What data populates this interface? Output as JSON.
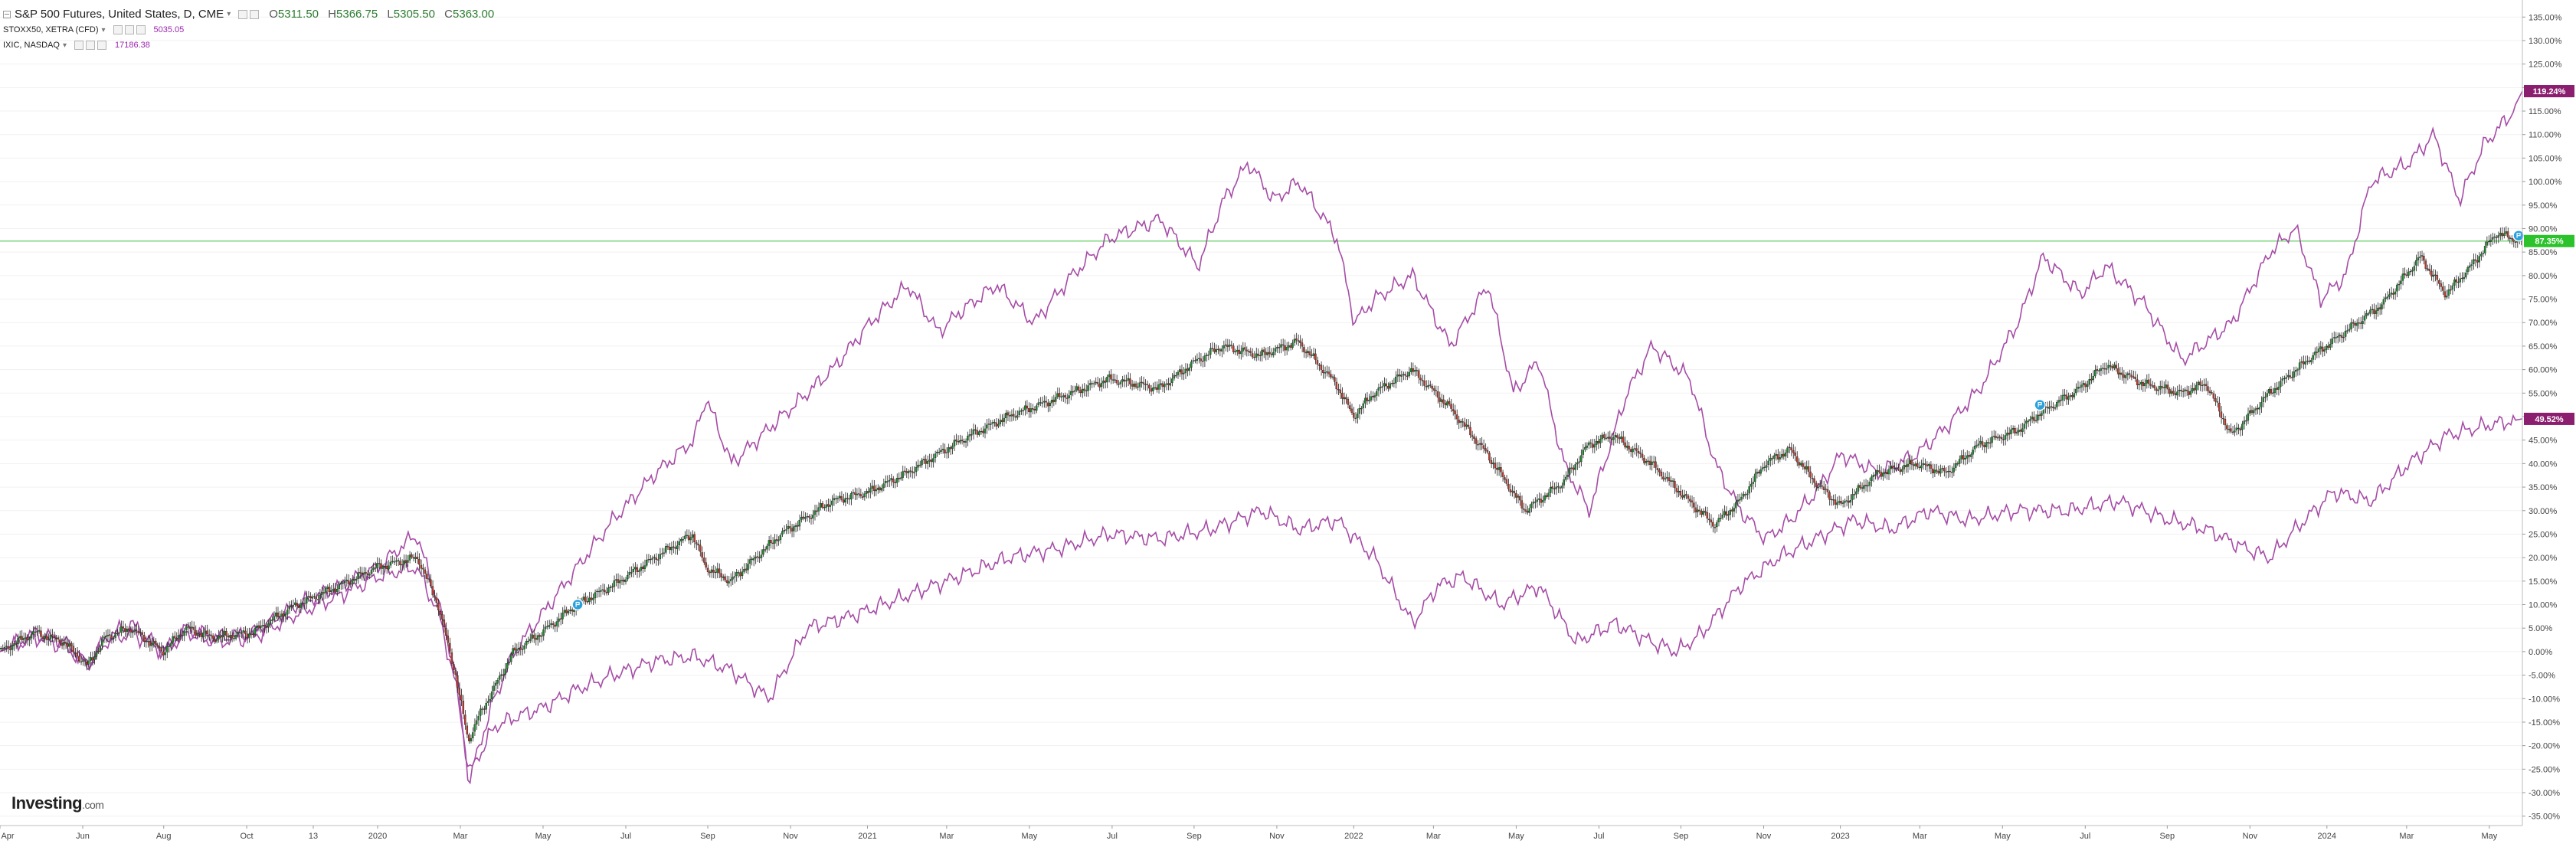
{
  "legend": {
    "main": {
      "title": "S&P 500 Futures, United States, D, CME",
      "open_label": "O",
      "open": "5311.50",
      "high_label": "H",
      "high": "5366.75",
      "low_label": "L",
      "low": "5305.50",
      "close_label": "C",
      "close": "5363.00"
    },
    "comparisons": [
      {
        "symbol": "STOXX50, XETRA (CFD)",
        "value": "5035.05",
        "color": "#9c27b0"
      },
      {
        "symbol": "IXIC, NASDAQ",
        "value": "17186.38",
        "color": "#9c27b0"
      }
    ]
  },
  "logo": {
    "text": "Investing",
    "suffix": ".com"
  },
  "colors": {
    "up": "#1b8a2b",
    "down": "#c0392b",
    "wick": "#222222",
    "compare_line": "#a64ca6",
    "price_line": "#7cd67c",
    "badge_purple": "#8b1e6f",
    "badge_green": "#2bc22b",
    "marker": "#2aa0dd",
    "axis_text": "#444444",
    "grid": "#f1f1f1"
  },
  "chart_data": {
    "type": "line",
    "title": "S&P 500 Futures, United States, D, CME",
    "y_axis": {
      "position": "right",
      "unit": "%",
      "ylim": [
        -37,
        137
      ],
      "tick_step": 5
    },
    "x_axis": {
      "labels": [
        "Apr",
        "Jun",
        "Aug",
        "Oct",
        "13",
        "2020",
        "Mar",
        "May",
        "Jul",
        "Sep",
        "Nov",
        "2021",
        "Mar",
        "May",
        "Jul",
        "Sep",
        "Nov",
        "2022",
        "Mar",
        "May",
        "Jul",
        "Sep",
        "Nov",
        "2023",
        "Mar",
        "May",
        "Jul",
        "Sep",
        "Nov",
        "2024",
        "Mar",
        "May"
      ],
      "label_positions": [
        0.0,
        0.0328,
        0.0649,
        0.0978,
        0.1242,
        0.1497,
        0.1825,
        0.2153,
        0.2481,
        0.2806,
        0.3134,
        0.3439,
        0.3753,
        0.4081,
        0.4409,
        0.4734,
        0.5062,
        0.5367,
        0.5683,
        0.6011,
        0.6339,
        0.6664,
        0.6992,
        0.7296,
        0.7611,
        0.7939,
        0.8267,
        0.8592,
        0.892,
        0.9225,
        0.9541,
        0.9869
      ]
    },
    "current_badges": [
      {
        "series": "IXIC",
        "value": 119.24,
        "label": "119.24%"
      },
      {
        "series": "S&P 500 Futures",
        "value": 87.35,
        "label": "87.35%"
      },
      {
        "series": "STOXX50",
        "value": 49.52,
        "label": "49.52%"
      }
    ],
    "price_line_value": 87.35,
    "markers": [
      {
        "t": 0.229,
        "y": 10
      },
      {
        "t": 0.8087,
        "y": 52.5
      },
      {
        "t": 0.9985,
        "y": 88.5
      }
    ],
    "series": [
      {
        "name": "S&P 500 Futures",
        "style": "candlestick",
        "t": [
          0,
          0.014,
          0.026,
          0.035,
          0.042,
          0.052,
          0.065,
          0.074,
          0.085,
          0.1,
          0.118,
          0.135,
          0.15,
          0.166,
          0.174,
          0.181,
          0.186,
          0.19,
          0.196,
          0.204,
          0.215,
          0.229,
          0.243,
          0.26,
          0.275,
          0.28,
          0.29,
          0.31,
          0.33,
          0.345,
          0.36,
          0.372,
          0.385,
          0.4,
          0.42,
          0.44,
          0.46,
          0.475,
          0.485,
          0.5,
          0.515,
          0.53,
          0.537,
          0.545,
          0.56,
          0.575,
          0.59,
          0.605,
          0.62,
          0.63,
          0.64,
          0.655,
          0.67,
          0.68,
          0.69,
          0.7,
          0.71,
          0.72,
          0.73,
          0.745,
          0.76,
          0.772,
          0.785,
          0.8,
          0.81,
          0.825,
          0.835,
          0.85,
          0.865,
          0.875,
          0.885,
          0.9,
          0.915,
          0.93,
          0.945,
          0.96,
          0.97,
          0.98,
          0.99,
          1.0
        ],
        "y": [
          0,
          4,
          2,
          -3,
          3,
          5,
          0,
          5,
          3,
          4,
          10,
          14,
          18,
          20,
          10,
          -5,
          -19,
          -14,
          -8,
          0,
          4,
          10,
          14,
          20,
          25,
          18,
          15,
          25,
          32,
          34,
          38,
          42,
          46,
          50,
          54,
          58,
          56,
          62,
          65,
          63,
          66,
          57,
          50,
          55,
          60,
          52,
          42,
          30,
          36,
          44,
          46,
          40,
          32,
          27,
          32,
          40,
          43,
          36,
          31,
          38,
          40,
          38,
          44,
          47,
          51,
          56,
          61,
          57,
          55,
          57,
          46,
          55,
          62,
          68,
          74,
          84,
          76,
          82,
          89,
          87.35
        ]
      },
      {
        "name": "IXIC",
        "style": "line",
        "t": [
          0,
          0.014,
          0.026,
          0.035,
          0.042,
          0.052,
          0.065,
          0.074,
          0.085,
          0.1,
          0.118,
          0.135,
          0.15,
          0.165,
          0.174,
          0.181,
          0.186,
          0.19,
          0.196,
          0.204,
          0.215,
          0.229,
          0.243,
          0.26,
          0.275,
          0.28,
          0.29,
          0.31,
          0.33,
          0.345,
          0.36,
          0.372,
          0.38,
          0.395,
          0.41,
          0.425,
          0.44,
          0.46,
          0.475,
          0.485,
          0.495,
          0.505,
          0.515,
          0.53,
          0.537,
          0.545,
          0.56,
          0.575,
          0.59,
          0.6,
          0.61,
          0.62,
          0.63,
          0.645,
          0.655,
          0.67,
          0.68,
          0.69,
          0.7,
          0.71,
          0.72,
          0.73,
          0.745,
          0.76,
          0.772,
          0.785,
          0.8,
          0.81,
          0.825,
          0.835,
          0.85,
          0.865,
          0.875,
          0.885,
          0.9,
          0.91,
          0.92,
          0.93,
          0.94,
          0.955,
          0.965,
          0.975,
          0.985,
          0.995,
          1.0
        ],
        "y": [
          0,
          4,
          2,
          -3,
          3,
          6,
          0,
          5,
          3,
          4,
          10,
          14,
          18,
          25,
          10,
          -5,
          -28,
          -20,
          -10,
          0,
          8,
          18,
          28,
          38,
          45,
          54,
          40,
          50,
          60,
          70,
          78,
          68,
          72,
          78,
          70,
          80,
          88,
          92,
          82,
          96,
          104,
          96,
          100,
          88,
          70,
          75,
          80,
          65,
          78,
          55,
          62,
          40,
          30,
          55,
          65,
          58,
          40,
          30,
          24,
          28,
          34,
          42,
          38,
          42,
          48,
          56,
          70,
          84,
          76,
          82,
          74,
          62,
          66,
          70,
          85,
          90,
          75,
          80,
          100,
          104,
          110,
          96,
          108,
          114,
          119.24
        ]
      },
      {
        "name": "STOXX50",
        "style": "line",
        "t": [
          0,
          0.014,
          0.026,
          0.035,
          0.042,
          0.052,
          0.065,
          0.074,
          0.085,
          0.1,
          0.118,
          0.135,
          0.15,
          0.165,
          0.174,
          0.181,
          0.186,
          0.19,
          0.196,
          0.204,
          0.215,
          0.229,
          0.243,
          0.26,
          0.275,
          0.29,
          0.305,
          0.32,
          0.34,
          0.36,
          0.38,
          0.4,
          0.42,
          0.44,
          0.46,
          0.48,
          0.5,
          0.515,
          0.53,
          0.545,
          0.56,
          0.57,
          0.58,
          0.595,
          0.61,
          0.625,
          0.64,
          0.655,
          0.665,
          0.675,
          0.69,
          0.705,
          0.72,
          0.735,
          0.75,
          0.765,
          0.78,
          0.8,
          0.82,
          0.84,
          0.86,
          0.875,
          0.89,
          0.9,
          0.91,
          0.925,
          0.94,
          0.955,
          0.97,
          0.985,
          1.0
        ],
        "y": [
          0,
          3,
          1,
          -3,
          2,
          4,
          0,
          4,
          2,
          3,
          8,
          12,
          16,
          18,
          8,
          -8,
          -26,
          -22,
          -16,
          -14,
          -12,
          -8,
          -5,
          -2,
          -1,
          -4,
          -10,
          5,
          8,
          12,
          16,
          20,
          22,
          25,
          24,
          26,
          30,
          26,
          28,
          20,
          6,
          14,
          16,
          10,
          14,
          2,
          6,
          2,
          0,
          4,
          14,
          20,
          24,
          28,
          26,
          30,
          28,
          30,
          30,
          32,
          28,
          26,
          22,
          20,
          26,
          34,
          32,
          40,
          46,
          48,
          49.52
        ]
      }
    ]
  }
}
